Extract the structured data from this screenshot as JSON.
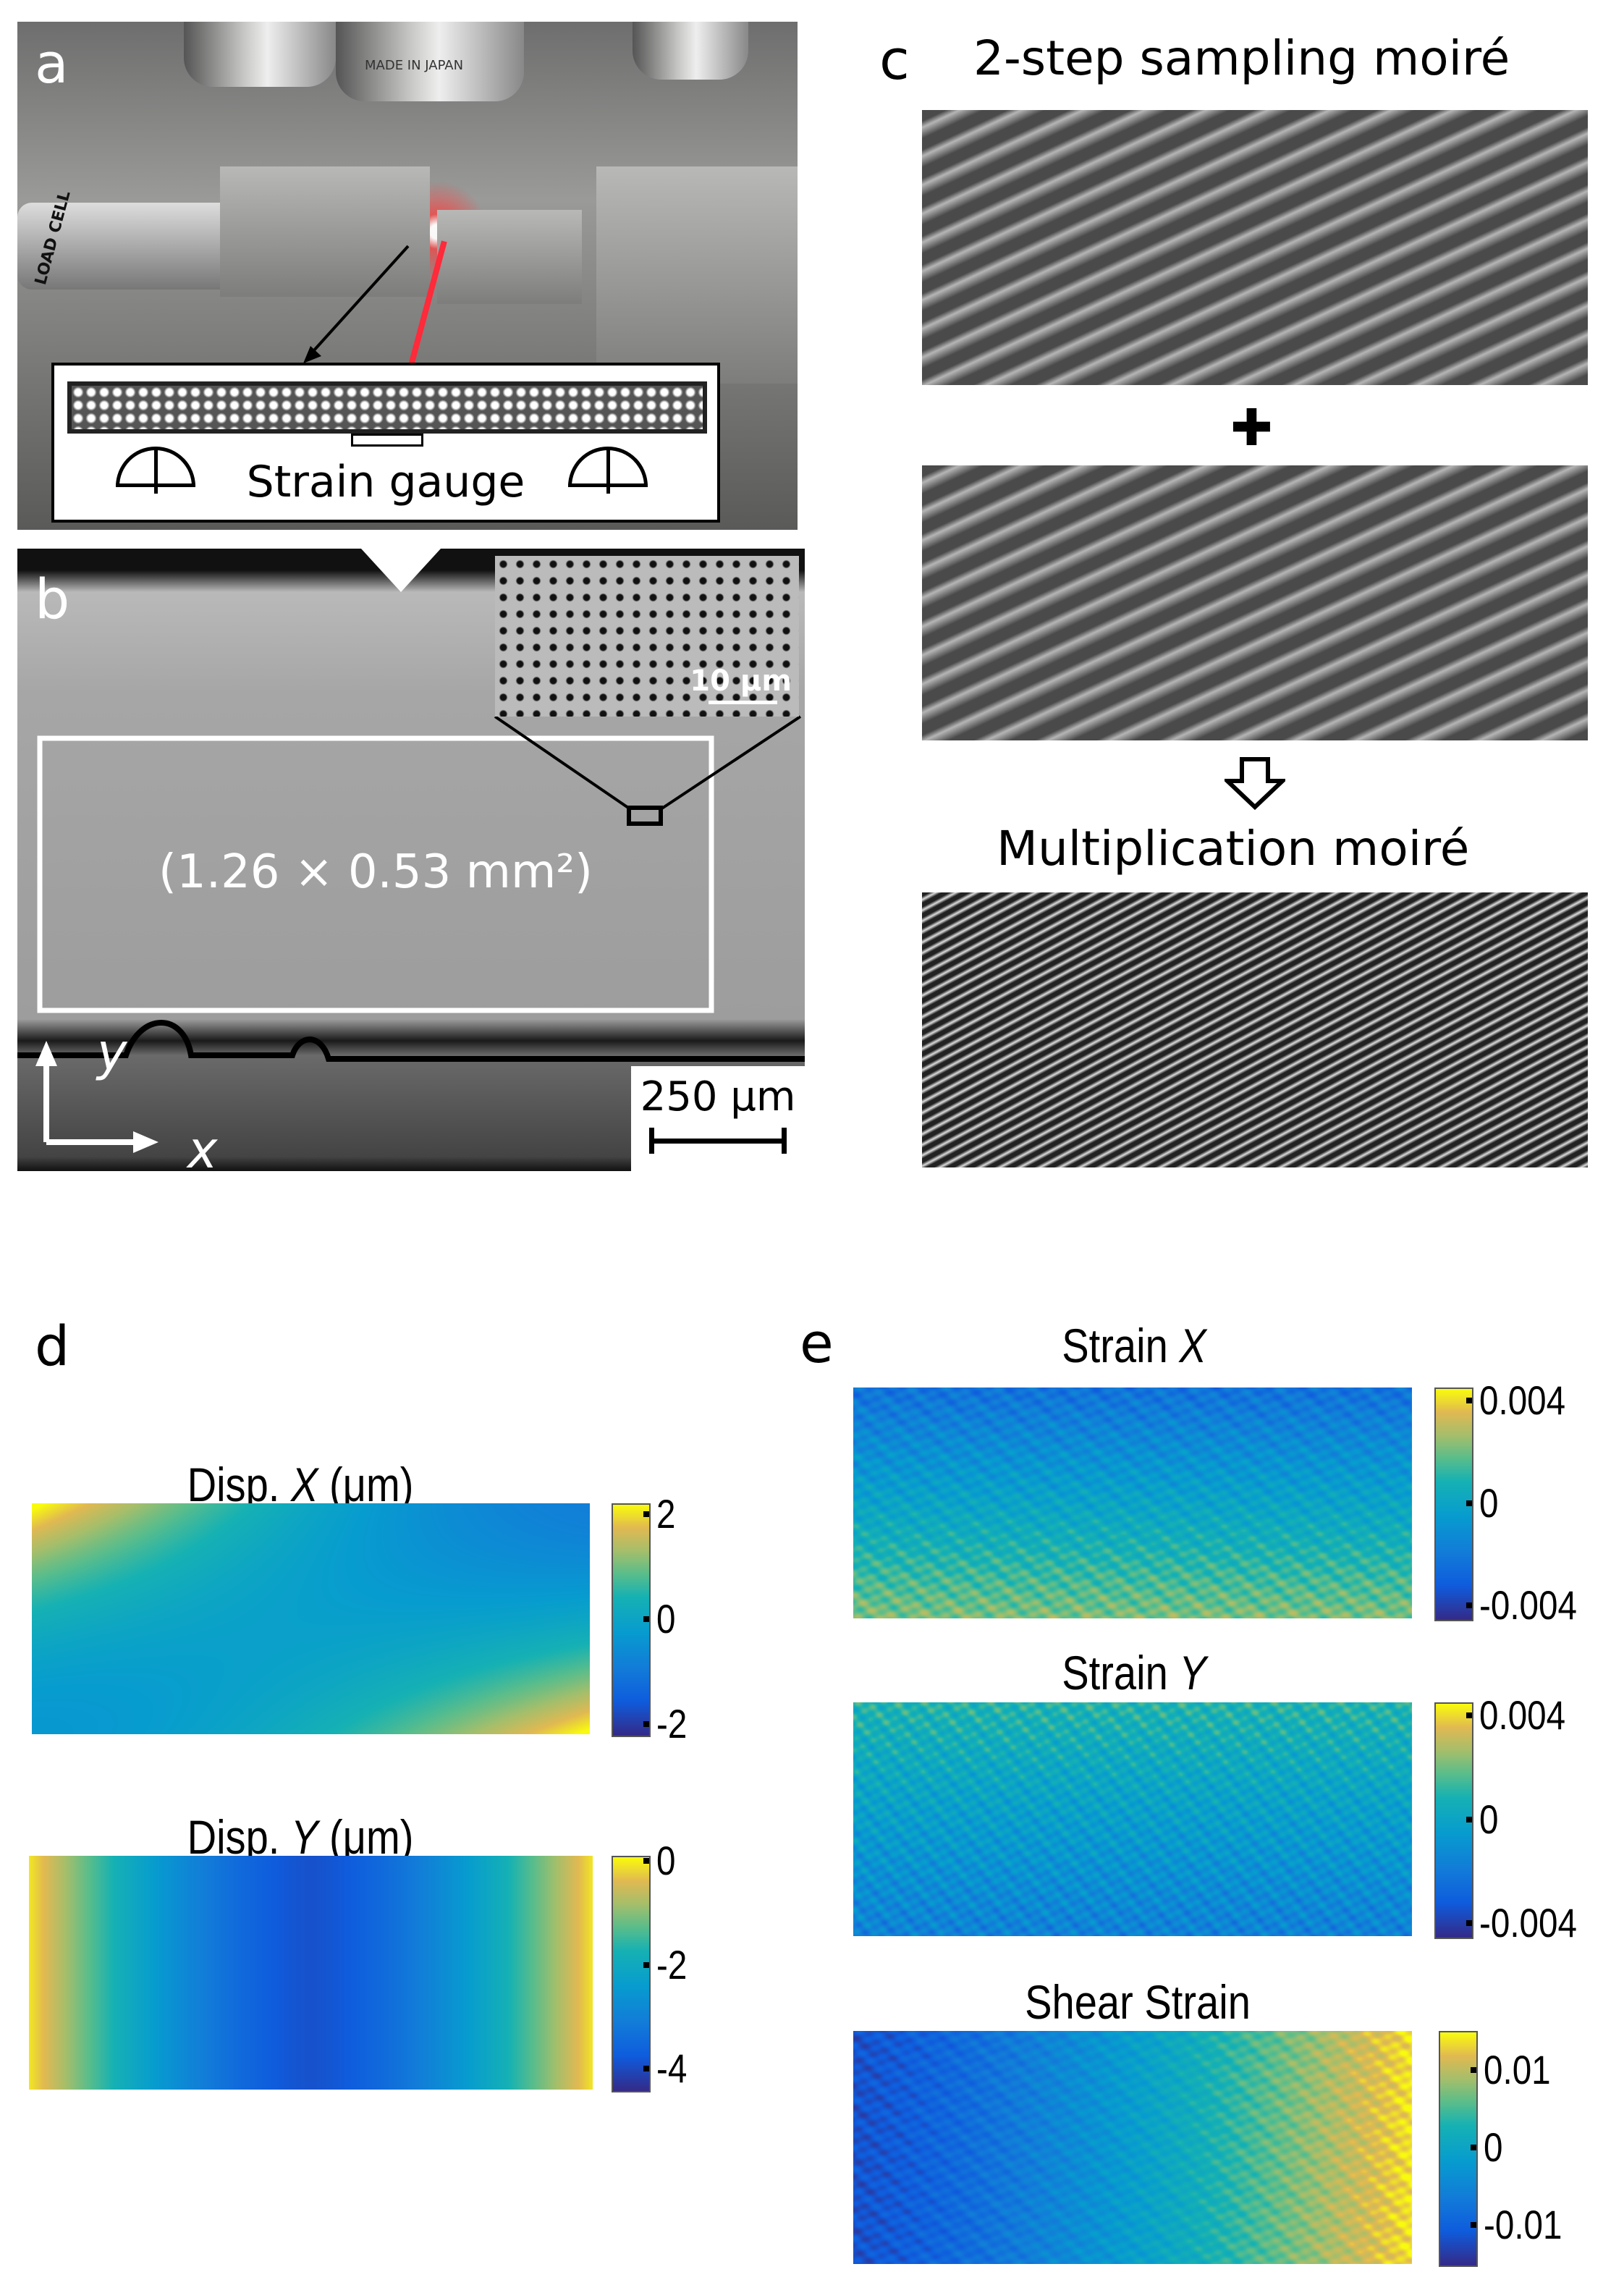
{
  "colormap": "parula",
  "panel_a": {
    "label": "a",
    "photo_text": [
      "MADE IN JAPAN",
      "LOAD CELL"
    ],
    "inset_label": "Strain gauge",
    "accent_color": "#ff2a3a"
  },
  "panel_b": {
    "label": "b",
    "region_text": "(1.26 × 0.53 mm²)",
    "inset_scale": "10 μm",
    "scale_bar": "250 μm",
    "axis_x": "x",
    "axis_y": "y"
  },
  "panel_c": {
    "label": "c",
    "title": "2-step sampling moiré",
    "plus_icon": "plus-icon",
    "arrow_icon": "arrow-down-icon",
    "result_title": "Multiplication moiré"
  },
  "panel_d": {
    "label": "d",
    "maps": [
      {
        "title_pre": "Disp. ",
        "title_var": "X",
        "title_post": " (μm)",
        "range": [
          -2.2,
          2.2
        ],
        "ticks": [
          "2",
          "0",
          "-2"
        ],
        "tick_values": [
          2,
          0,
          -2
        ]
      },
      {
        "title_pre": "Disp. ",
        "title_var": "Y",
        "title_post": " (μm)",
        "range": [
          -4.4,
          0.1
        ],
        "ticks": [
          "0",
          "-2",
          "-4"
        ],
        "tick_values": [
          0,
          -2,
          -4
        ]
      }
    ]
  },
  "panel_e": {
    "label": "e",
    "maps": [
      {
        "title_pre": "Strain ",
        "title_var": "X",
        "title_post": "",
        "range": [
          -0.0045,
          0.0045
        ],
        "ticks": [
          "0.004",
          "0",
          "-0.004"
        ],
        "tick_values": [
          0.004,
          0,
          -0.004
        ]
      },
      {
        "title_pre": "Strain ",
        "title_var": "Y",
        "title_post": "",
        "range": [
          -0.0045,
          0.0045
        ],
        "ticks": [
          "0.004",
          "0",
          "-0.004"
        ],
        "tick_values": [
          0.004,
          0,
          -0.004
        ]
      },
      {
        "title_pre": "Shear Strain",
        "title_var": "",
        "title_post": "",
        "range": [
          -0.015,
          0.015
        ],
        "ticks": [
          "0.01",
          "0",
          "-0.01"
        ],
        "tick_values": [
          0.01,
          0,
          -0.01
        ]
      }
    ]
  }
}
